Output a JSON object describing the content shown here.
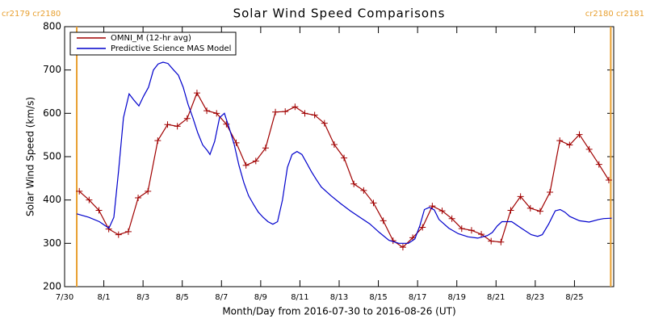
{
  "chart_data": {
    "type": "line",
    "title": "Solar Wind Speed Comparisons",
    "x_label": "Month/Day from 2016-07-30 to 2016-08-26 (UT)",
    "y_label": "Solar Wind Speed (km/s)",
    "xlim": [
      0,
      28
    ],
    "xticks": [
      {
        "value": 0,
        "label": "7/30"
      },
      {
        "value": 2,
        "label": "8/1"
      },
      {
        "value": 4,
        "label": "8/3"
      },
      {
        "value": 6,
        "label": "8/5"
      },
      {
        "value": 8,
        "label": "8/7"
      },
      {
        "value": 10,
        "label": "8/9"
      },
      {
        "value": 12,
        "label": "8/11"
      },
      {
        "value": 14,
        "label": "8/13"
      },
      {
        "value": 16,
        "label": "8/15"
      },
      {
        "value": 18,
        "label": "8/17"
      },
      {
        "value": 20,
        "label": "8/19"
      },
      {
        "value": 22,
        "label": "8/21"
      },
      {
        "value": 24,
        "label": "8/23"
      },
      {
        "value": 26,
        "label": "8/25"
      }
    ],
    "ylim": [
      200,
      800
    ],
    "yticks": [
      200,
      300,
      400,
      500,
      600,
      700,
      800
    ],
    "grid": false,
    "legend": "upper left",
    "annotations": [
      {
        "x": 0.62,
        "label": "cr2179 cr2180",
        "color": "#e8a030"
      },
      {
        "x": 27.85,
        "label": "cr2180 cr2181",
        "color": "#e8a030"
      }
    ],
    "series": [
      {
        "name": "OMNI_M (12-hr avg)",
        "color": "#a00000",
        "marker": "plus",
        "x": [
          0.75,
          1.25,
          1.75,
          2.25,
          2.75,
          3.25,
          3.75,
          4.25,
          4.75,
          5.25,
          5.75,
          6.25,
          6.75,
          7.25,
          7.75,
          8.25,
          8.75,
          9.25,
          9.75,
          10.25,
          10.75,
          11.25,
          11.75,
          12.25,
          12.75,
          13.25,
          13.75,
          14.25,
          14.75,
          15.25,
          15.75,
          16.25,
          16.75,
          17.25,
          17.75,
          18.25,
          18.75,
          19.25,
          19.75,
          20.25,
          20.75,
          21.25,
          21.75,
          22.25,
          22.75,
          23.25,
          23.75,
          24.25,
          24.75,
          25.25,
          25.75,
          26.25,
          26.75,
          27.25,
          27.75
        ],
        "values": [
          420,
          400,
          376,
          333,
          320,
          327,
          405,
          420,
          537,
          574,
          570,
          588,
          647,
          606,
          600,
          575,
          532,
          480,
          490,
          520,
          603,
          604,
          615,
          600,
          596,
          577,
          528,
          497,
          437,
          422,
          393,
          352,
          306,
          291,
          313,
          337,
          386,
          375,
          357,
          334,
          330,
          321,
          305,
          303,
          376,
          408,
          381,
          374,
          418,
          537,
          527,
          551,
          517,
          482,
          446
        ]
      },
      {
        "name": "Predictive Science MAS Model",
        "color": "#0000cc",
        "marker": "none",
        "x": [
          0.62,
          1.23,
          1.77,
          2.26,
          2.51,
          2.76,
          3.0,
          3.29,
          3.54,
          3.79,
          4.03,
          4.28,
          4.53,
          4.77,
          5.02,
          5.27,
          5.56,
          5.8,
          6.05,
          6.3,
          6.54,
          6.79,
          7.04,
          7.28,
          7.41,
          7.65,
          7.9,
          8.15,
          8.4,
          8.64,
          8.89,
          9.14,
          9.38,
          9.63,
          9.88,
          10.12,
          10.37,
          10.62,
          10.86,
          11.11,
          11.36,
          11.6,
          11.85,
          12.1,
          12.35,
          12.59,
          12.84,
          13.09,
          13.58,
          14.07,
          14.57,
          15.06,
          15.56,
          16.05,
          16.54,
          17.04,
          17.53,
          17.86,
          18.11,
          18.35,
          18.6,
          18.85,
          19.09,
          19.59,
          20.08,
          20.58,
          21.07,
          21.56,
          21.81,
          22.06,
          22.3,
          22.8,
          23.29,
          23.79,
          24.12,
          24.36,
          24.69,
          25.02,
          25.27,
          25.51,
          25.76,
          26.26,
          26.75,
          27.24,
          27.49,
          27.9
        ],
        "values": [
          368,
          360,
          350,
          335,
          360,
          470,
          590,
          645,
          630,
          617,
          640,
          660,
          700,
          714,
          718,
          715,
          700,
          688,
          660,
          620,
          590,
          555,
          527,
          514,
          505,
          535,
          590,
          600,
          565,
          530,
          480,
          440,
          410,
          390,
          372,
          360,
          350,
          344,
          350,
          400,
          475,
          505,
          512,
          505,
          485,
          465,
          447,
          430,
          410,
          392,
          375,
          360,
          345,
          325,
          307,
          300,
          300,
          310,
          340,
          378,
          383,
          377,
          355,
          335,
          322,
          315,
          312,
          318,
          325,
          340,
          350,
          350,
          335,
          320,
          316,
          320,
          345,
          375,
          378,
          372,
          362,
          352,
          349,
          355,
          357,
          358
        ]
      }
    ]
  }
}
